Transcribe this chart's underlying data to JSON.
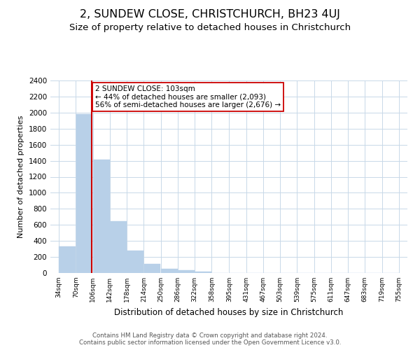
{
  "title": "2, SUNDEW CLOSE, CHRISTCHURCH, BH23 4UJ",
  "subtitle": "Size of property relative to detached houses in Christchurch",
  "xlabel": "Distribution of detached houses by size in Christchurch",
  "ylabel": "Number of detached properties",
  "bar_edges": [
    34,
    70,
    106,
    142,
    178,
    214,
    250,
    286,
    322,
    358,
    395,
    431,
    467,
    503,
    539,
    575,
    611,
    647,
    683,
    719,
    755
  ],
  "bar_heights": [
    330,
    1980,
    1410,
    650,
    280,
    110,
    50,
    35,
    20,
    0,
    0,
    0,
    0,
    0,
    0,
    0,
    0,
    0,
    0,
    0
  ],
  "bar_color": "#b8d0e8",
  "bar_edge_color": "#b8d0e8",
  "property_value": 103,
  "property_line_color": "#cc0000",
  "annotation_box_edge_color": "#cc0000",
  "annotation_text_line1": "2 SUNDEW CLOSE: 103sqm",
  "annotation_text_line2": "← 44% of detached houses are smaller (2,093)",
  "annotation_text_line3": "56% of semi-detached houses are larger (2,676) →",
  "ylim": [
    0,
    2400
  ],
  "yticks": [
    0,
    200,
    400,
    600,
    800,
    1000,
    1200,
    1400,
    1600,
    1800,
    2000,
    2200,
    2400
  ],
  "tick_labels": [
    "34sqm",
    "70sqm",
    "106sqm",
    "142sqm",
    "178sqm",
    "214sqm",
    "250sqm",
    "286sqm",
    "322sqm",
    "358sqm",
    "395sqm",
    "431sqm",
    "467sqm",
    "503sqm",
    "539sqm",
    "575sqm",
    "611sqm",
    "647sqm",
    "683sqm",
    "719sqm",
    "755sqm"
  ],
  "footer_line1": "Contains HM Land Registry data © Crown copyright and database right 2024.",
  "footer_line2": "Contains public sector information licensed under the Open Government Licence v3.0.",
  "background_color": "#ffffff",
  "grid_color": "#c8d8e8",
  "title_fontsize": 11.5,
  "subtitle_fontsize": 9.5
}
